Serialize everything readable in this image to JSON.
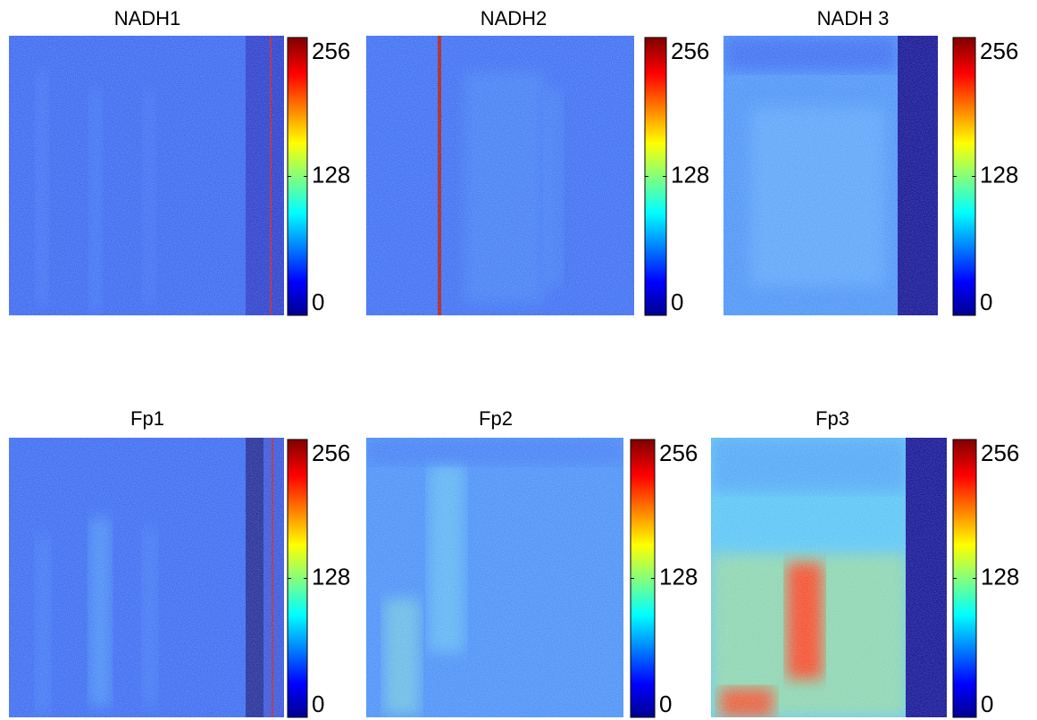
{
  "chart_data": [
    {
      "type": "heatmap",
      "title": "NADH1",
      "clim": [
        0,
        256
      ],
      "cticks": [
        0,
        128,
        256
      ]
    },
    {
      "type": "heatmap",
      "title": "NADH2",
      "clim": [
        0,
        256
      ],
      "cticks": [
        0,
        128,
        256
      ]
    },
    {
      "type": "heatmap",
      "title": "NADH 3",
      "clim": [
        0,
        256
      ],
      "cticks": [
        0,
        128,
        256
      ]
    },
    {
      "type": "heatmap",
      "title": "Fp1",
      "clim": [
        0,
        256
      ],
      "cticks": [
        0,
        128,
        256
      ]
    },
    {
      "type": "heatmap",
      "title": "Fp2",
      "clim": [
        0,
        256
      ],
      "cticks": [
        0,
        128,
        256
      ]
    },
    {
      "type": "heatmap",
      "title": "Fp3",
      "clim": [
        0,
        256
      ],
      "cticks": [
        0,
        128,
        256
      ]
    }
  ]
}
